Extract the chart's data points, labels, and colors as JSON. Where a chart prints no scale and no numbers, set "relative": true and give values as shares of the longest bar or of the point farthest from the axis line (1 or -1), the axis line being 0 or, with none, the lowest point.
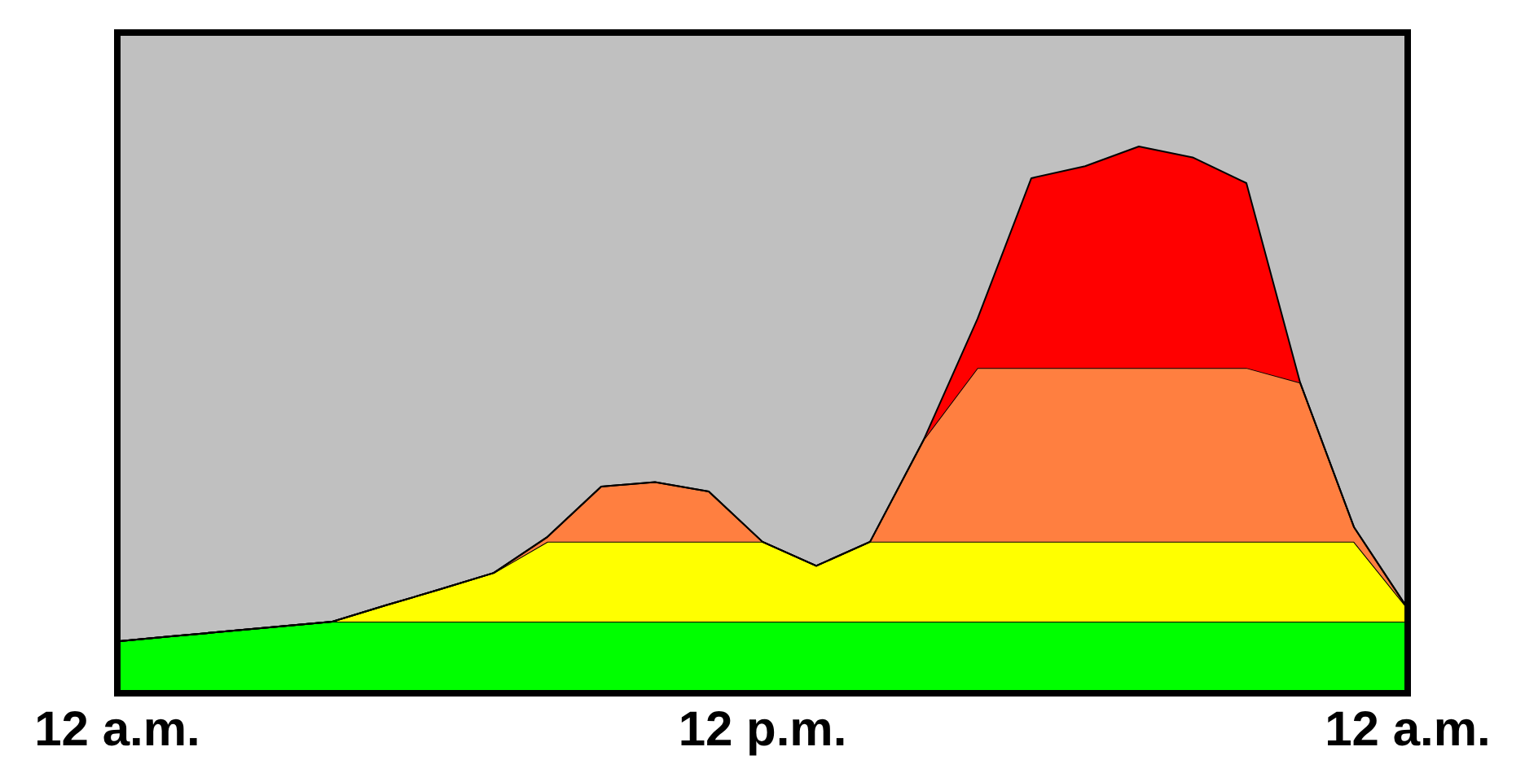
{
  "chart_data": {
    "type": "area",
    "stacked": true,
    "relative": true,
    "categories": [
      "12 a.m.",
      null,
      null,
      null,
      null,
      null,
      null,
      null,
      null,
      null,
      null,
      null,
      "12 p.m.",
      null,
      null,
      null,
      null,
      null,
      null,
      null,
      null,
      null,
      null,
      null,
      "12 a.m."
    ],
    "series": [
      {
        "color": "#00ff00",
        "values": [
          0.095,
          0.104,
          0.113,
          0.122,
          0.131,
          0.131,
          0.131,
          0.131,
          0.131,
          0.131,
          0.131,
          0.131,
          0.131,
          0.131,
          0.131,
          0.131,
          0.131,
          0.131,
          0.131,
          0.131,
          0.131,
          0.131,
          0.131,
          0.131,
          0.131
        ]
      },
      {
        "color": "#ffff00",
        "values": [
          0,
          0,
          0,
          0,
          0,
          0.03,
          0.059,
          0.089,
          0.146,
          0.146,
          0.146,
          0.146,
          0.146,
          0.102,
          0.146,
          0.146,
          0.146,
          0.146,
          0.146,
          0.146,
          0.146,
          0.146,
          0.146,
          0.146,
          0.024
        ]
      },
      {
        "color": "#ff7f40",
        "values": [
          0,
          0,
          0,
          0,
          0,
          0,
          0,
          0,
          0.009,
          0.101,
          0.109,
          0.092,
          0,
          0,
          0,
          0.187,
          0.318,
          0.318,
          0.318,
          0.318,
          0.318,
          0.318,
          0.291,
          0.027,
          0
        ]
      },
      {
        "color": "#ff0000",
        "values": [
          0,
          0,
          0,
          0,
          0,
          0,
          0,
          0,
          0,
          0,
          0,
          0,
          0,
          0,
          0,
          0,
          0.09,
          0.347,
          0.369,
          0.405,
          0.385,
          0.338,
          0,
          0,
          0
        ]
      }
    ],
    "grid": false
  }
}
